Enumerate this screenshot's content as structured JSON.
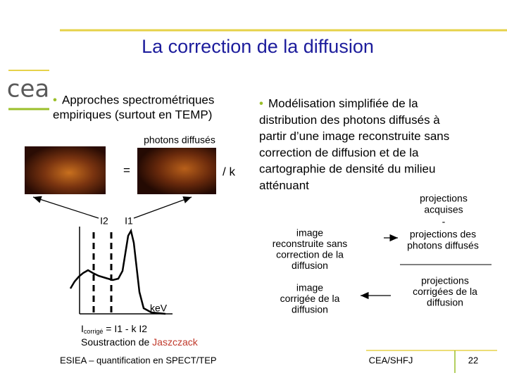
{
  "logo": "cea",
  "title": "La correction de la diffusion",
  "left": {
    "bullet": "•",
    "lines": [
      "Approches spectrométriques",
      "empiriques (surtout en TEMP)"
    ],
    "photons_label": "photons diffusés",
    "equals": "=",
    "divide": "/ k",
    "i2": "I2",
    "i1": "I1",
    "axis_label": "keV",
    "formula": {
      "base": "I",
      "subscript": "corrigé",
      "rest": " = I1 - k I2"
    },
    "method": {
      "text": "Soustraction de ",
      "author": "Jaszczack"
    }
  },
  "right": {
    "bullet": "•",
    "lines": [
      "Modélisation simplifiée de la",
      "distribution des photons diffusés à",
      "partir d’une image reconstruite sans",
      "correction de diffusion et de la",
      "cartographie de densité du milieu",
      "atténuant"
    ],
    "projections_acquired": [
      "projections",
      "acquises"
    ],
    "minus": "-",
    "projections_scatter": [
      "projections des",
      "photons diffusés"
    ],
    "image_uncorrected": [
      "image",
      "reconstruite sans",
      "correction de la",
      "diffusion"
    ],
    "image_corrected": [
      "image",
      "corrigée de la",
      "diffusion"
    ],
    "projections_corrected": [
      "projections",
      "corrigées de la",
      "diffusion"
    ]
  },
  "footer": {
    "left": "ESIEA – quantification en SPECT/TEP",
    "center": "CEA/SHFJ",
    "page": "22"
  }
}
